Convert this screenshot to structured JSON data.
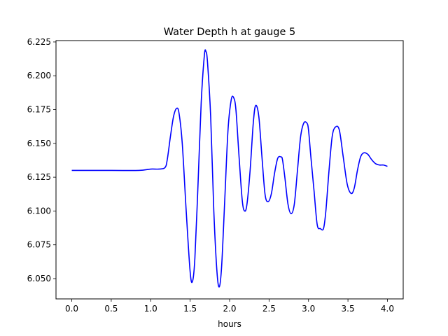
{
  "chart_data": {
    "type": "line",
    "title": "Water Depth h at gauge 5",
    "xlabel": "hours",
    "ylabel": "",
    "xlim": [
      -0.2,
      4.2
    ],
    "ylim": [
      6.035,
      6.226
    ],
    "xticks": [
      "0.0",
      "0.5",
      "1.0",
      "1.5",
      "2.0",
      "2.5",
      "3.0",
      "3.5",
      "4.0"
    ],
    "yticks": [
      "6.050",
      "6.075",
      "6.100",
      "6.125",
      "6.150",
      "6.175",
      "6.200",
      "6.225"
    ],
    "grid": false,
    "legend": "none",
    "series": [
      {
        "color": "#0000ff",
        "x": [
          0.0,
          0.5,
          0.85,
          1.0,
          1.1,
          1.18,
          1.21,
          1.25,
          1.29,
          1.33,
          1.36,
          1.4,
          1.45,
          1.5,
          1.53,
          1.56,
          1.6,
          1.64,
          1.68,
          1.7,
          1.72,
          1.76,
          1.8,
          1.84,
          1.87,
          1.9,
          1.94,
          1.98,
          2.02,
          2.05,
          2.08,
          2.12,
          2.16,
          2.19,
          2.22,
          2.26,
          2.3,
          2.33,
          2.37,
          2.41,
          2.45,
          2.49,
          2.53,
          2.57,
          2.61,
          2.65,
          2.67,
          2.7,
          2.74,
          2.78,
          2.82,
          2.86,
          2.9,
          2.94,
          2.98,
          3.0,
          3.03,
          3.07,
          3.11,
          3.15,
          3.19,
          3.22,
          3.26,
          3.3,
          3.34,
          3.39,
          3.44,
          3.49,
          3.54,
          3.58,
          3.62,
          3.66,
          3.7,
          3.75,
          3.8,
          3.85,
          3.9,
          3.95,
          4.0
        ],
        "y": [
          6.13,
          6.13,
          6.13,
          6.131,
          6.131,
          6.132,
          6.138,
          6.155,
          6.17,
          6.176,
          6.172,
          6.15,
          6.1,
          6.055,
          6.048,
          6.065,
          6.12,
          6.18,
          6.215,
          6.218,
          6.21,
          6.17,
          6.1,
          6.055,
          6.044,
          6.06,
          6.11,
          6.16,
          6.182,
          6.184,
          6.175,
          6.14,
          6.108,
          6.1,
          6.105,
          6.13,
          6.165,
          6.178,
          6.17,
          6.14,
          6.112,
          6.107,
          6.113,
          6.128,
          6.139,
          6.14,
          6.138,
          6.125,
          6.105,
          6.098,
          6.105,
          6.13,
          6.155,
          6.165,
          6.165,
          6.16,
          6.14,
          6.115,
          6.09,
          6.087,
          6.087,
          6.1,
          6.13,
          6.155,
          6.162,
          6.16,
          6.14,
          6.12,
          6.113,
          6.117,
          6.13,
          6.14,
          6.143,
          6.142,
          6.138,
          6.135,
          6.134,
          6.134,
          6.133
        ]
      }
    ]
  }
}
